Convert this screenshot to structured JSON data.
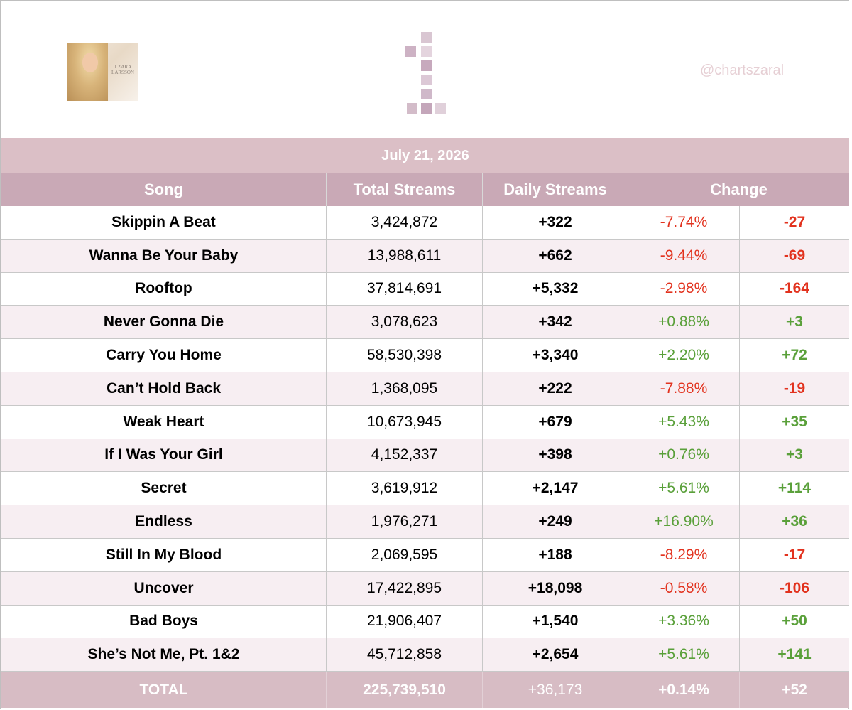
{
  "header": {
    "album_cover_text": "1 ZARA LARSSON",
    "handle": "@chartszaral"
  },
  "date": "July 21, 2026",
  "columns": {
    "song": "Song",
    "total": "Total Streams",
    "daily": "Daily Streams",
    "change": "Change"
  },
  "rows": [
    {
      "song": "Skippin A Beat",
      "total": "3,424,872",
      "daily": "+322",
      "pct": "-7.74%",
      "diff": "-27",
      "trend": "neg"
    },
    {
      "song": "Wanna Be Your Baby",
      "total": "13,988,611",
      "daily": "+662",
      "pct": "-9.44%",
      "diff": "-69",
      "trend": "neg"
    },
    {
      "song": "Rooftop",
      "total": "37,814,691",
      "daily": "+5,332",
      "pct": "-2.98%",
      "diff": "-164",
      "trend": "neg"
    },
    {
      "song": "Never Gonna Die",
      "total": "3,078,623",
      "daily": "+342",
      "pct": "+0.88%",
      "diff": "+3",
      "trend": "pos"
    },
    {
      "song": "Carry You Home",
      "total": "58,530,398",
      "daily": "+3,340",
      "pct": "+2.20%",
      "diff": "+72",
      "trend": "pos"
    },
    {
      "song": "Can’t Hold Back",
      "total": "1,368,095",
      "daily": "+222",
      "pct": "-7.88%",
      "diff": "-19",
      "trend": "neg"
    },
    {
      "song": "Weak Heart",
      "total": "10,673,945",
      "daily": "+679",
      "pct": "+5.43%",
      "diff": "+35",
      "trend": "pos"
    },
    {
      "song": "If I Was Your Girl",
      "total": "4,152,337",
      "daily": "+398",
      "pct": "+0.76%",
      "diff": "+3",
      "trend": "pos"
    },
    {
      "song": "Secret",
      "total": "3,619,912",
      "daily": "+2,147",
      "pct": "+5.61%",
      "diff": "+114",
      "trend": "pos"
    },
    {
      "song": "Endless",
      "total": "1,976,271",
      "daily": "+249",
      "pct": "+16.90%",
      "diff": "+36",
      "trend": "pos"
    },
    {
      "song": "Still In My Blood",
      "total": "2,069,595",
      "daily": "+188",
      "pct": "-8.29%",
      "diff": "-17",
      "trend": "neg"
    },
    {
      "song": "Uncover",
      "total": "17,422,895",
      "daily": "+18,098",
      "pct": "-0.58%",
      "diff": "-106",
      "trend": "neg"
    },
    {
      "song": "Bad Boys",
      "total": "21,906,407",
      "daily": "+1,540",
      "pct": "+3.36%",
      "diff": "+50",
      "trend": "pos"
    },
    {
      "song": "She’s Not Me, Pt. 1&2",
      "total": "45,712,858",
      "daily": "+2,654",
      "pct": "+5.61%",
      "diff": "+141",
      "trend": "pos"
    }
  ],
  "totals": {
    "label": "TOTAL",
    "total": "225,739,510",
    "daily": "+36,173",
    "pct": "+0.14%",
    "diff": "+52"
  },
  "colors": {
    "negative": "#e2321e",
    "positive": "#5aa03a",
    "header_bar": "#c9a9b6",
    "date_bar": "#dbbfc6"
  }
}
